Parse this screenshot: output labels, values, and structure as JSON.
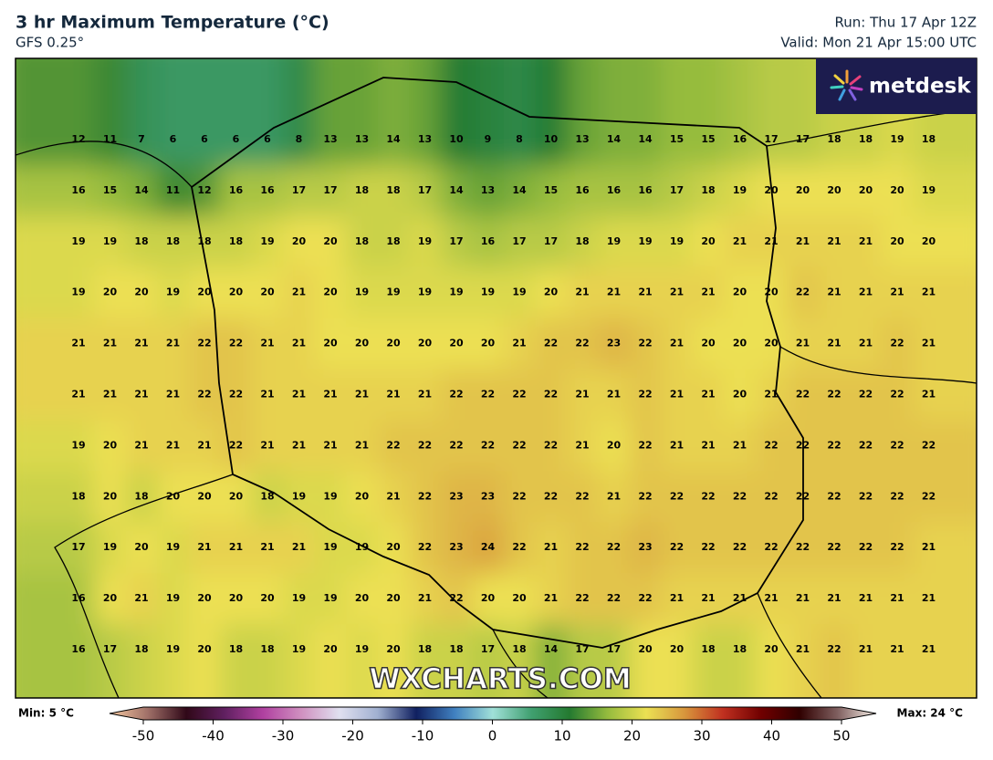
{
  "header": {
    "title": "3 hr Maximum Temperature (°C)",
    "subtitle": "GFS 0.25°",
    "run": "Run: Thu 17 Apr 12Z",
    "valid": "Valid: Mon 21 Apr 15:00 UTC"
  },
  "logo": "metdesk",
  "watermark": "WXCHARTS.COM",
  "legend": {
    "min_label": "Min: 5 °C",
    "max_label": "Max: 24 °C",
    "ticks": [
      -50,
      -40,
      -30,
      -20,
      -10,
      0,
      10,
      20,
      30,
      40,
      50
    ]
  },
  "grid": [
    [
      12,
      11,
      7,
      6,
      6,
      6,
      6,
      8,
      13,
      13,
      14,
      13,
      10,
      9,
      8,
      10,
      13,
      14,
      14,
      15,
      15,
      16,
      17,
      17,
      18,
      18,
      19,
      18
    ],
    [
      16,
      15,
      14,
      11,
      12,
      16,
      16,
      17,
      17,
      18,
      18,
      17,
      14,
      13,
      14,
      15,
      16,
      16,
      16,
      17,
      18,
      19,
      20,
      20,
      20,
      20,
      20,
      19
    ],
    [
      19,
      19,
      18,
      18,
      18,
      18,
      19,
      20,
      20,
      18,
      18,
      19,
      17,
      16,
      17,
      17,
      18,
      19,
      19,
      19,
      20,
      21,
      21,
      21,
      21,
      21,
      20,
      20
    ],
    [
      19,
      20,
      20,
      19,
      20,
      20,
      20,
      21,
      20,
      19,
      19,
      19,
      19,
      19,
      19,
      20,
      21,
      21,
      21,
      21,
      21,
      20,
      20,
      22,
      21,
      21,
      21,
      21
    ],
    [
      21,
      21,
      21,
      21,
      22,
      22,
      21,
      21,
      20,
      20,
      20,
      20,
      20,
      20,
      21,
      22,
      22,
      23,
      22,
      21,
      20,
      20,
      20,
      21,
      21,
      21,
      22,
      21
    ],
    [
      21,
      21,
      21,
      21,
      22,
      22,
      21,
      21,
      21,
      21,
      21,
      21,
      22,
      22,
      22,
      22,
      21,
      21,
      22,
      21,
      21,
      20,
      21,
      22,
      22,
      22,
      22,
      21
    ],
    [
      19,
      20,
      21,
      21,
      21,
      22,
      21,
      21,
      21,
      21,
      22,
      22,
      22,
      22,
      22,
      22,
      21,
      20,
      22,
      21,
      21,
      21,
      22,
      22,
      22,
      22,
      22,
      22
    ],
    [
      18,
      20,
      18,
      20,
      20,
      20,
      18,
      19,
      19,
      20,
      21,
      22,
      23,
      23,
      22,
      22,
      22,
      21,
      22,
      22,
      22,
      22,
      22,
      22,
      22,
      22,
      22,
      22
    ],
    [
      17,
      19,
      20,
      19,
      21,
      21,
      21,
      21,
      19,
      19,
      20,
      22,
      23,
      24,
      22,
      21,
      22,
      22,
      23,
      22,
      22,
      22,
      22,
      22,
      22,
      22,
      22,
      21
    ],
    [
      16,
      20,
      21,
      19,
      20,
      20,
      20,
      19,
      19,
      20,
      20,
      21,
      22,
      20,
      20,
      21,
      22,
      22,
      22,
      21,
      21,
      21,
      21,
      21,
      21,
      21,
      21,
      21
    ],
    [
      16,
      17,
      18,
      19,
      20,
      18,
      18,
      19,
      20,
      19,
      20,
      18,
      18,
      17,
      18,
      14,
      17,
      17,
      20,
      20,
      18,
      18,
      20,
      21,
      22,
      21,
      21,
      21
    ]
  ]
}
